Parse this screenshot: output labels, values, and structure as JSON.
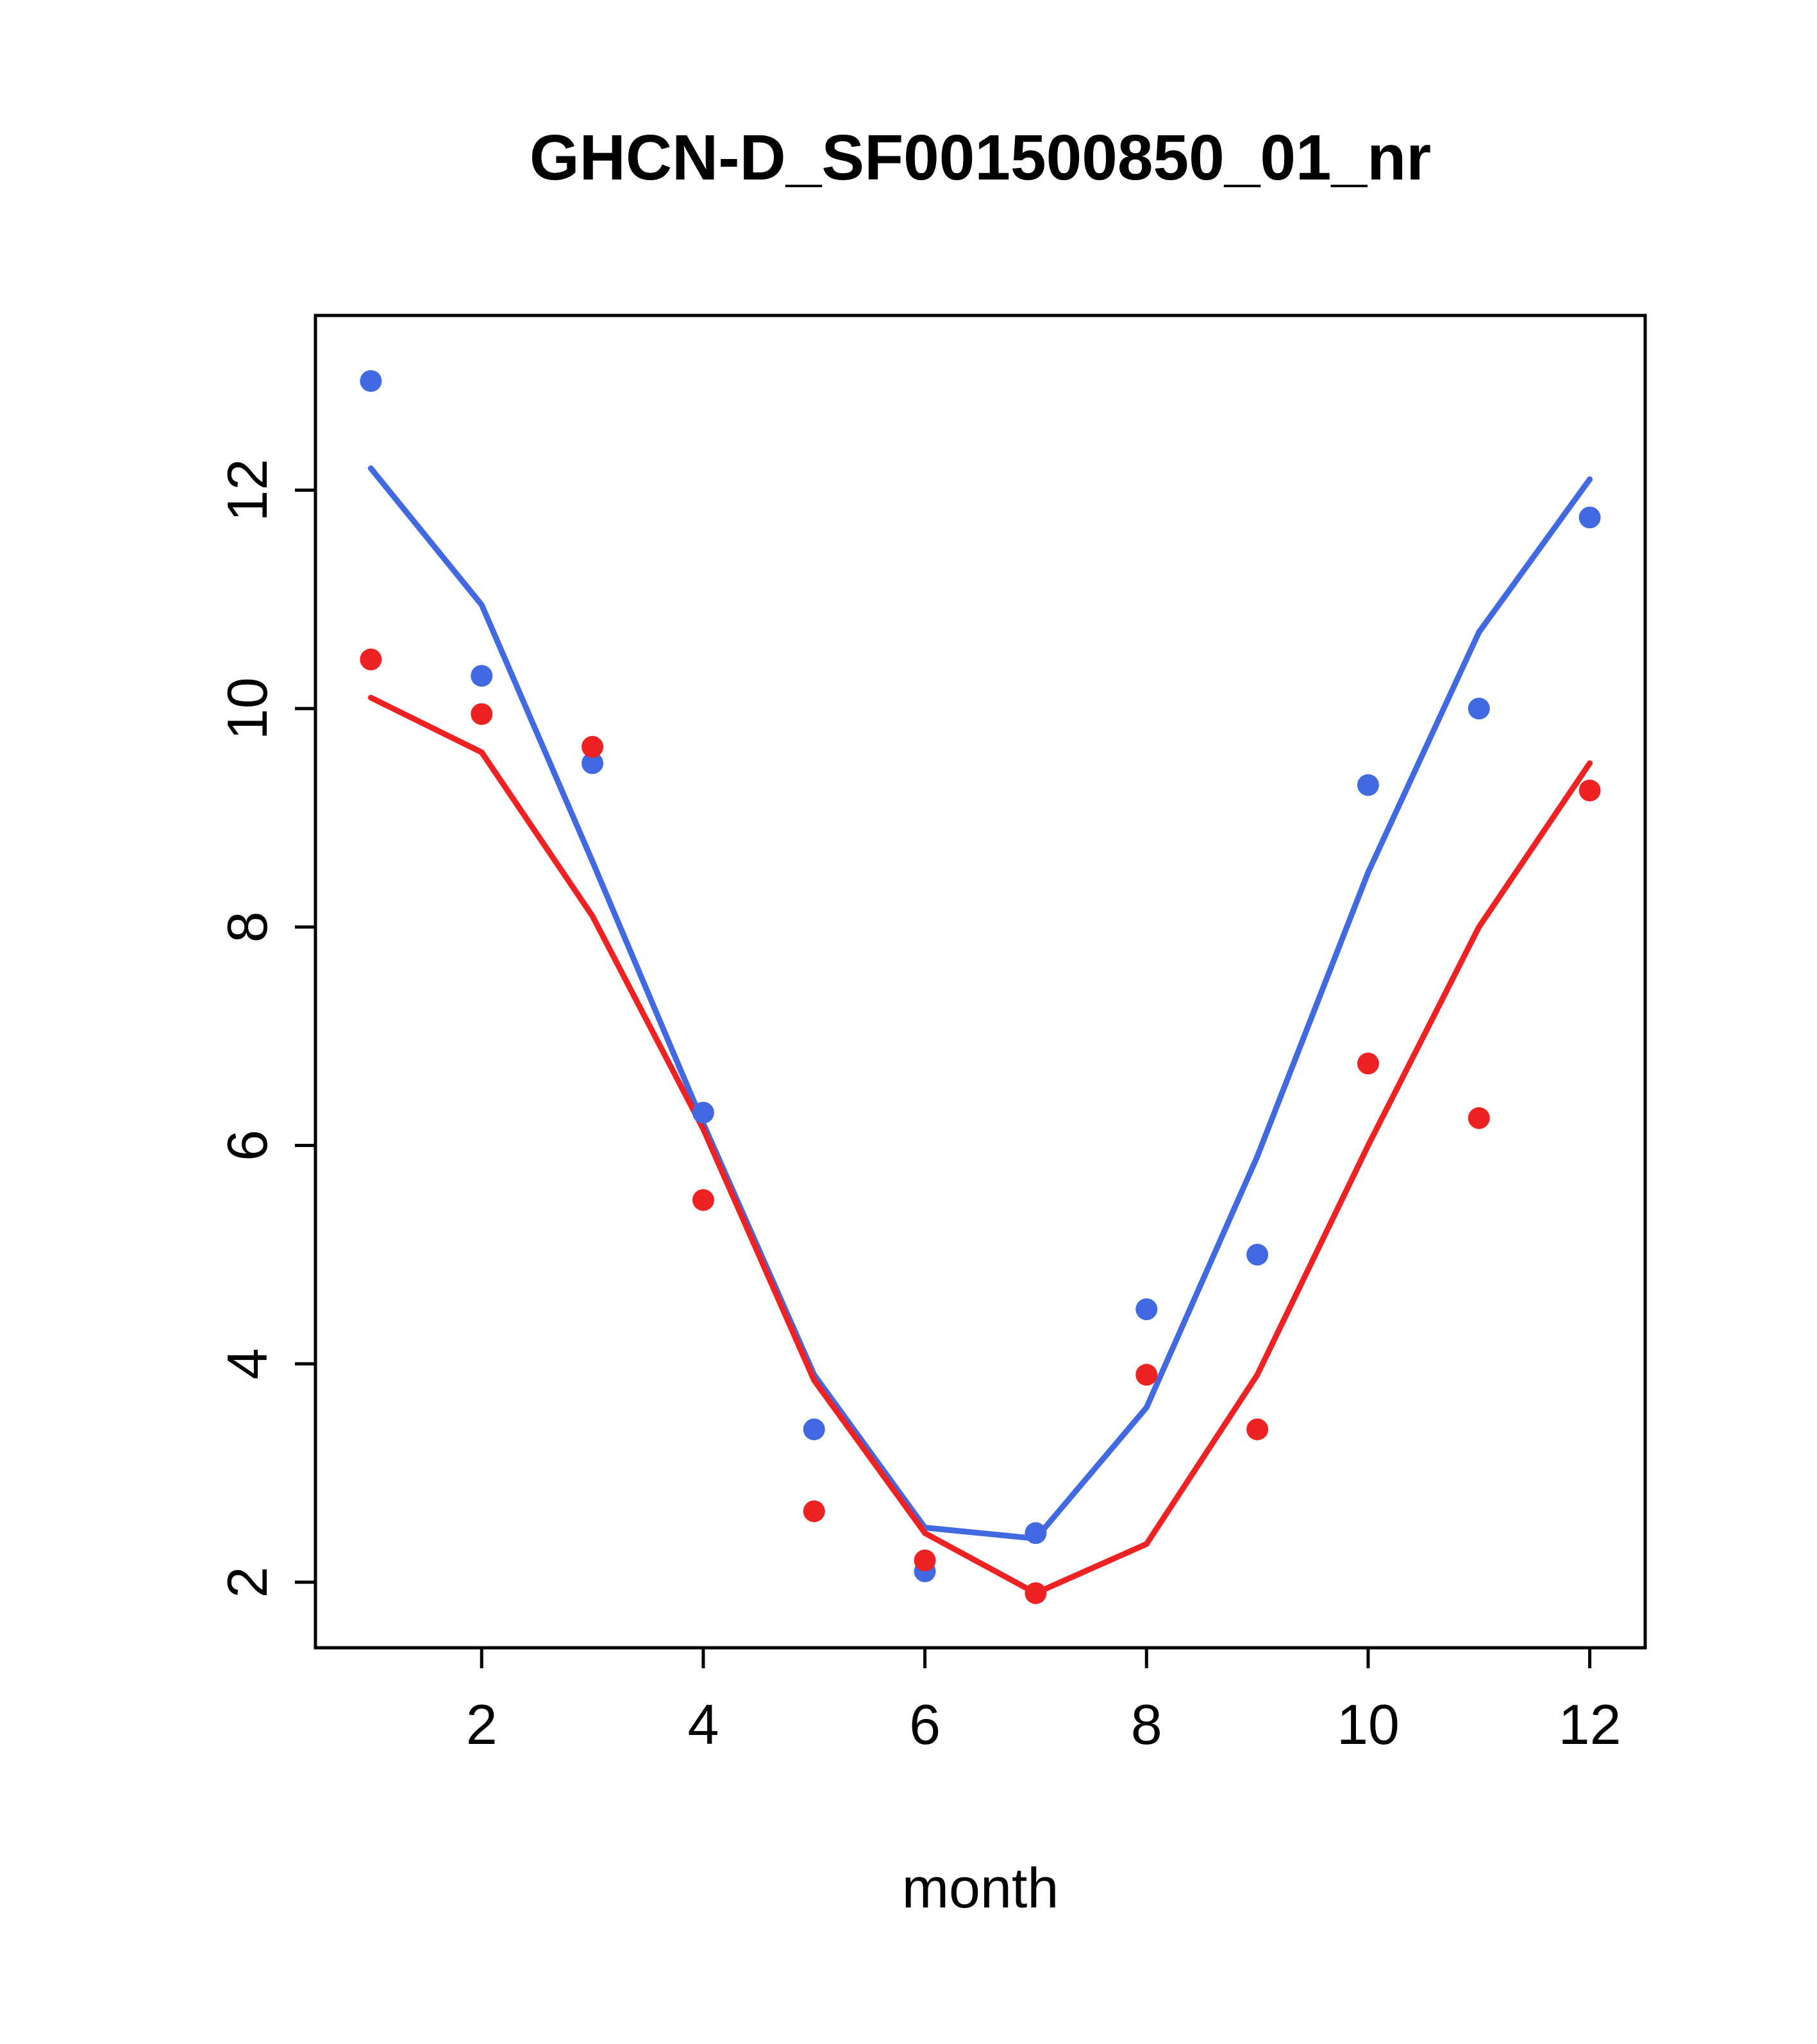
{
  "chart_data": {
    "type": "line",
    "title": "GHCN-D_SF001500850_01_nr",
    "xlabel": "month",
    "ylabel": "",
    "x": [
      1,
      2,
      3,
      4,
      5,
      6,
      7,
      8,
      9,
      10,
      11,
      12
    ],
    "xlim": [
      0.5,
      12.5
    ],
    "ylim": [
      1.4,
      13.6
    ],
    "x_ticks": [
      2,
      4,
      6,
      8,
      10,
      12
    ],
    "y_ticks": [
      2,
      4,
      6,
      8,
      10,
      12
    ],
    "grid": false,
    "legend_position": "none",
    "series": [
      {
        "name": "blue-points",
        "render": "scatter",
        "color": "#4169e1",
        "values": [
          13.0,
          10.3,
          9.5,
          6.3,
          3.4,
          2.1,
          2.45,
          4.5,
          5.0,
          9.3,
          10.0,
          11.75
        ]
      },
      {
        "name": "blue-line",
        "render": "line",
        "color": "#4169e1",
        "values": [
          12.2,
          10.95,
          8.6,
          6.2,
          3.9,
          2.5,
          2.4,
          3.6,
          5.9,
          8.5,
          10.7,
          12.1
        ]
      },
      {
        "name": "red-points",
        "render": "scatter",
        "color": "#ee2222",
        "values": [
          10.45,
          9.95,
          9.65,
          5.5,
          2.65,
          2.2,
          1.9,
          3.9,
          3.4,
          6.75,
          6.25,
          9.25
        ]
      },
      {
        "name": "red-line",
        "render": "line",
        "color": "#ee2222",
        "values": [
          10.1,
          9.6,
          8.1,
          6.15,
          3.85,
          2.45,
          1.9,
          2.35,
          3.9,
          6.0,
          8.0,
          9.5
        ]
      }
    ],
    "colors": {
      "blue": "#4169e1",
      "red": "#ee2222",
      "axis": "#000000",
      "background": "#ffffff"
    }
  }
}
